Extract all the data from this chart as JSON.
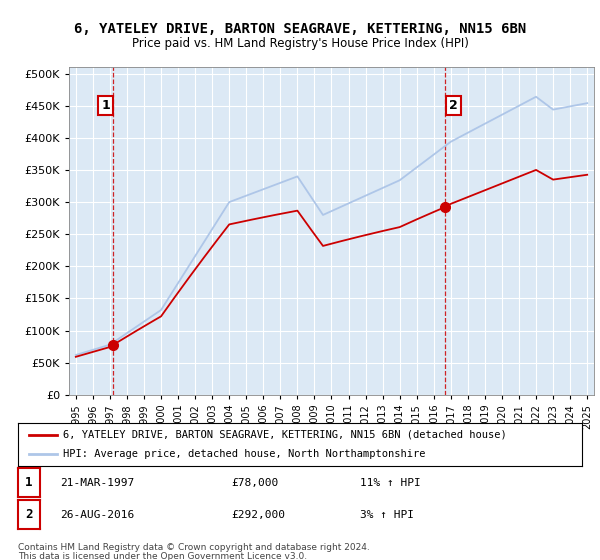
{
  "title": "6, YATELEY DRIVE, BARTON SEAGRAVE, KETTERING, NN15 6BN",
  "subtitle": "Price paid vs. HM Land Registry's House Price Index (HPI)",
  "legend_line1": "6, YATELEY DRIVE, BARTON SEAGRAVE, KETTERING, NN15 6BN (detached house)",
  "legend_line2": "HPI: Average price, detached house, North Northamptonshire",
  "annotation1_date": "21-MAR-1997",
  "annotation1_price": "£78,000",
  "annotation1_hpi": "11% ↑ HPI",
  "annotation1_year": 1997.21,
  "annotation1_value": 78000,
  "annotation2_date": "26-AUG-2016",
  "annotation2_price": "£292,000",
  "annotation2_hpi": "3% ↑ HPI",
  "annotation2_year": 2016.65,
  "annotation2_value": 292000,
  "footer1": "Contains HM Land Registry data © Crown copyright and database right 2024.",
  "footer2": "This data is licensed under the Open Government Licence v3.0.",
  "hpi_color": "#aec6e8",
  "price_color": "#cc0000",
  "dashed_line_color": "#cc0000",
  "plot_bg_color": "#dce9f5",
  "ylim": [
    0,
    510000
  ],
  "yticks": [
    0,
    50000,
    100000,
    150000,
    200000,
    250000,
    300000,
    350000,
    400000,
    450000,
    500000
  ],
  "xlabel_years": [
    "1995",
    "1996",
    "1997",
    "1998",
    "1999",
    "2000",
    "2001",
    "2002",
    "2003",
    "2004",
    "2005",
    "2006",
    "2007",
    "2008",
    "2009",
    "2010",
    "2011",
    "2012",
    "2013",
    "2014",
    "2015",
    "2016",
    "2017",
    "2018",
    "2019",
    "2020",
    "2021",
    "2022",
    "2023",
    "2024",
    "2025"
  ]
}
